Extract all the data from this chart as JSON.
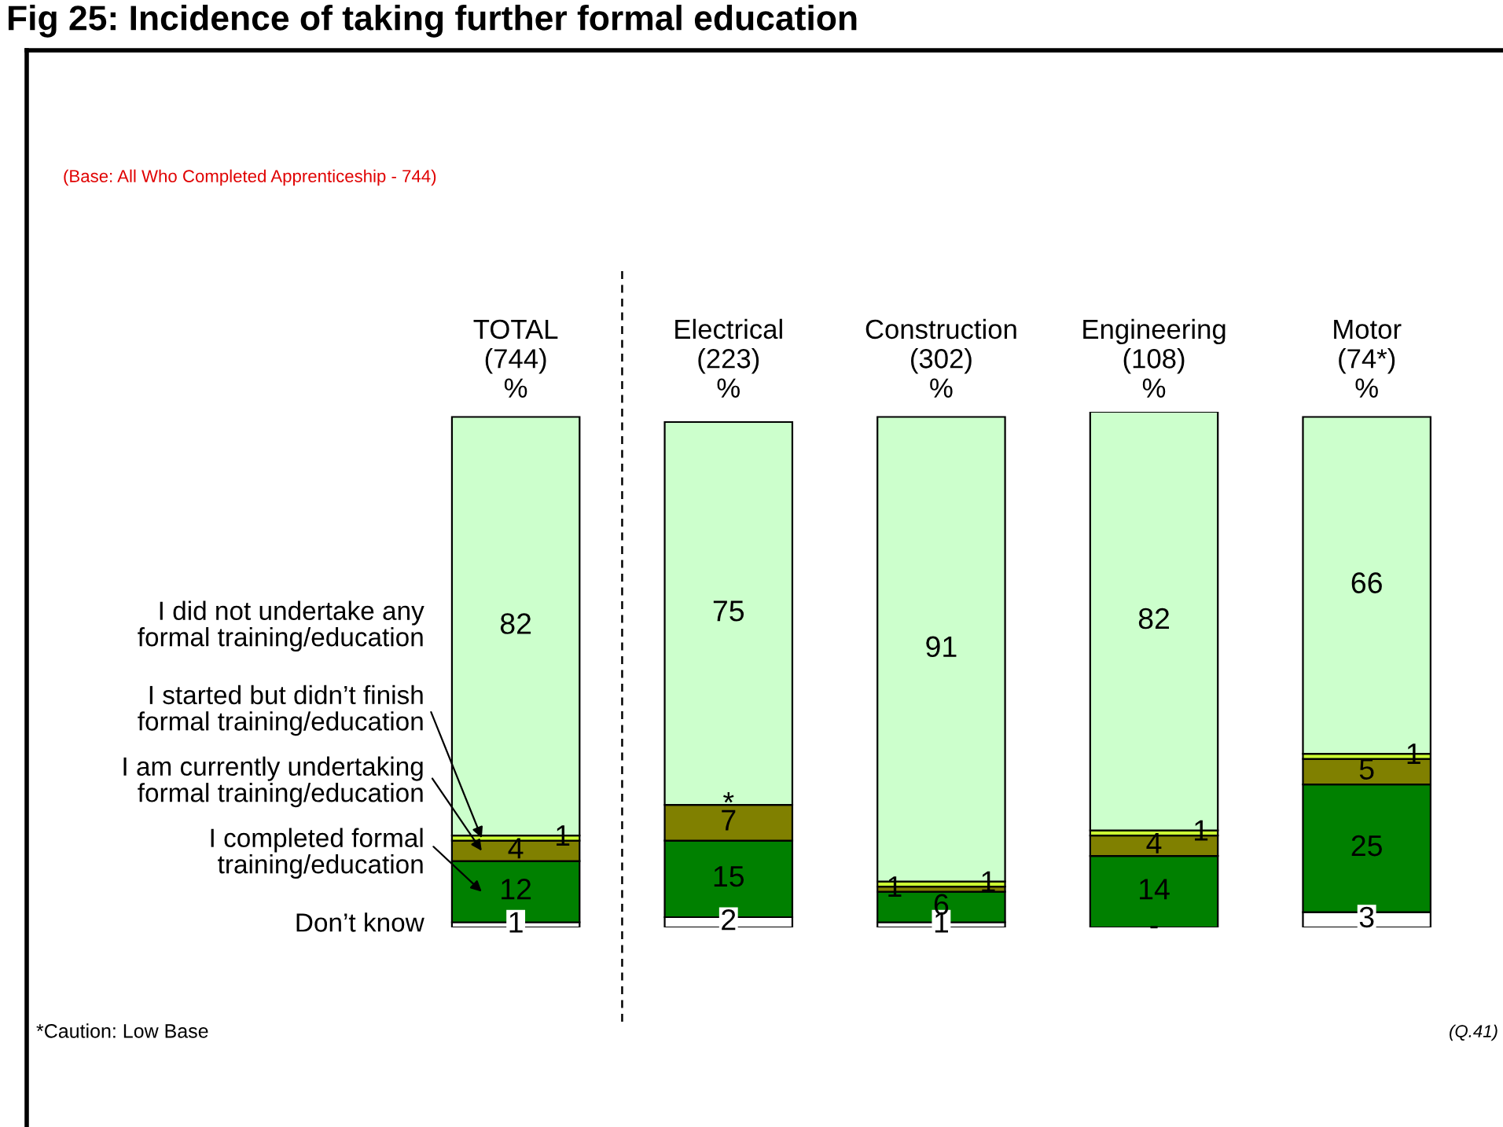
{
  "chart_data": {
    "type": "bar",
    "stacked": true,
    "title": "Fig 25: Incidence of taking further formal education",
    "subtitle": "(Base: All Who Completed Apprenticeship - 744)",
    "annotations": [
      "*Caution: Low Base",
      "(Q.41)",
      {
        "text": "*",
        "x": "Electrical\n(223)\n%",
        "y": 24
      },
      {
        "text": "-",
        "x": "Engineering\n(108)\n%",
        "y": 0
      }
    ],
    "categories": [
      "TOTAL\n(744)\n%",
      "Electrical\n(223)\n%",
      "Construction\n(302)\n%",
      "Engineering\n(108)\n%",
      "Motor\n(74*)\n%"
    ],
    "series": [
      {
        "name": "Don’t know",
        "color": "#ffffff",
        "values": [
          1,
          2,
          1,
          null,
          3
        ],
        "value_labels": [
          "1",
          "2",
          "1",
          null,
          "3"
        ]
      },
      {
        "name": "I completed formal\ntraining/education",
        "color": "#008000",
        "values": [
          12,
          15,
          6,
          14,
          25
        ],
        "value_labels": [
          "12",
          "15",
          "6",
          "14",
          "25"
        ]
      },
      {
        "name": "I am currently undertaking\nformal training/education",
        "color": "#808000",
        "values": [
          4,
          7,
          1,
          4,
          5
        ],
        "value_labels": [
          "4",
          "7",
          "1",
          "4",
          "5"
        ]
      },
      {
        "name": "I started but didn’t finish\nformal training/education",
        "color": "#ccff33",
        "values": [
          1,
          null,
          1,
          1,
          1
        ],
        "value_labels": [
          "1",
          null,
          "1",
          "1",
          "1"
        ]
      },
      {
        "name": "I did not undertake any\nformal training/education",
        "color": "#ccffcc",
        "values": [
          82,
          75,
          91,
          82,
          66
        ],
        "value_labels": [
          "82",
          "75",
          "91",
          "82",
          "66"
        ]
      }
    ]
  }
}
